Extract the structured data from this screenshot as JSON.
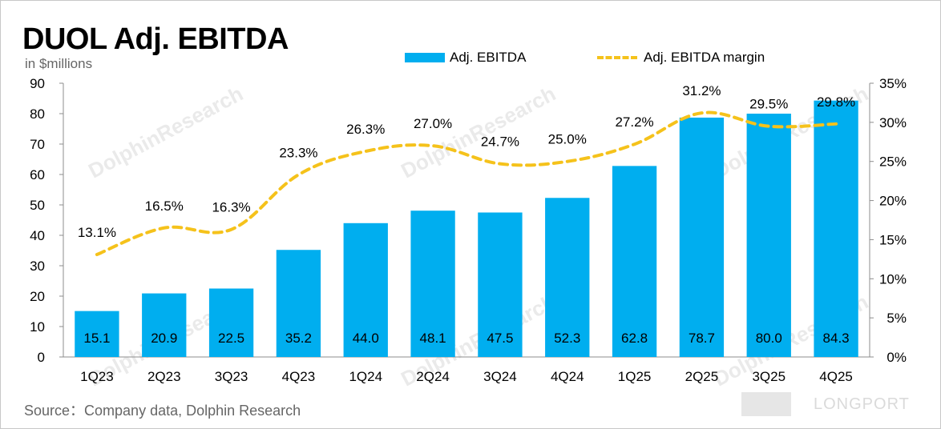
{
  "chart_data": {
    "type": "bar",
    "title": "DUOL Adj. EBITDA",
    "subtitle": "in $millions",
    "source": "Source：Company data, Dolphin Research",
    "categories": [
      "1Q23",
      "2Q23",
      "3Q23",
      "4Q23",
      "1Q24",
      "2Q24",
      "3Q24",
      "4Q24",
      "1Q25",
      "2Q25",
      "3Q25",
      "4Q25"
    ],
    "series": [
      {
        "name": "Adj. EBITDA",
        "type": "bar",
        "axis": "left",
        "values": [
          15.1,
          20.9,
          22.5,
          35.2,
          44.0,
          48.1,
          47.5,
          52.3,
          62.8,
          78.7,
          80.0,
          84.3
        ],
        "labels": [
          "15.1",
          "20.9",
          "22.5",
          "35.2",
          "44.0",
          "48.1",
          "47.5",
          "52.3",
          "62.8",
          "78.7",
          "80.0",
          "84.3"
        ]
      },
      {
        "name": "Adj. EBITDA margin",
        "type": "line",
        "axis": "right",
        "values": [
          13.1,
          16.5,
          16.3,
          23.3,
          26.3,
          27.0,
          24.7,
          25.0,
          27.2,
          31.2,
          29.5,
          29.8
        ],
        "labels": [
          "13.1%",
          "16.5%",
          "16.3%",
          "23.3%",
          "26.3%",
          "27.0%",
          "24.7%",
          "25.0%",
          "27.2%",
          "31.2%",
          "29.5%",
          "29.8%"
        ]
      }
    ],
    "y_left": {
      "range": [
        0,
        90
      ],
      "ticks": [
        "0",
        "10",
        "20",
        "30",
        "40",
        "50",
        "60",
        "70",
        "80",
        "90"
      ]
    },
    "y_right": {
      "range": [
        0,
        35
      ],
      "ticks": [
        "0%",
        "5%",
        "10%",
        "15%",
        "20%",
        "25%",
        "30%",
        "35%"
      ]
    },
    "legend_position": "top-right",
    "colors": {
      "bar": "#00aeef",
      "line": "#f5c21b"
    },
    "watermark": "DolphinResearch",
    "brand": "LONGPORT"
  }
}
